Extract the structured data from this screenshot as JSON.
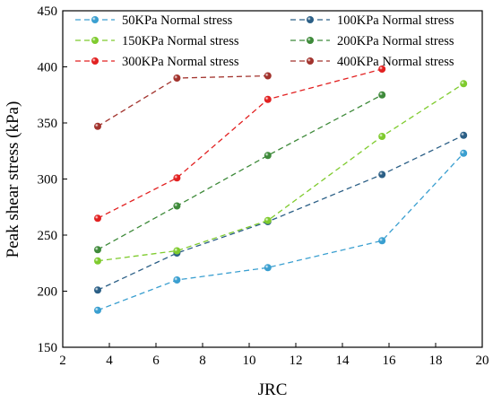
{
  "chart_data": {
    "type": "line",
    "xlabel": "JRC",
    "ylabel": "Peak shear stress (kPa)",
    "xlim": [
      2,
      20
    ],
    "ylim": [
      150,
      450
    ],
    "xticks": [
      2,
      4,
      6,
      8,
      10,
      12,
      14,
      16,
      18,
      20
    ],
    "yticks": [
      150,
      200,
      250,
      300,
      350,
      400,
      450
    ],
    "grid": false,
    "legend_placement": "top",
    "legend_columns": 2,
    "line_style": "dashed",
    "marker": "sphere",
    "series": [
      {
        "name": "50KPa Normal stress",
        "color": "#3a9fd0",
        "x": [
          3.5,
          6.9,
          10.8,
          15.7,
          19.2
        ],
        "y": [
          183,
          210,
          221,
          245,
          323
        ]
      },
      {
        "name": "100KPa Normal stress",
        "color": "#2b5f86",
        "x": [
          3.5,
          6.9,
          10.8,
          15.7,
          19.2
        ],
        "y": [
          201,
          234,
          262,
          304,
          339
        ]
      },
      {
        "name": "150KPa Normal stress",
        "color": "#7fcb2e",
        "x": [
          3.5,
          6.9,
          10.8,
          15.7,
          19.2
        ],
        "y": [
          227,
          236,
          263,
          338,
          385
        ]
      },
      {
        "name": "200KPa Normal stress",
        "color": "#3e8a3a",
        "x": [
          3.5,
          6.9,
          10.8,
          15.7
        ],
        "y": [
          237,
          276,
          321,
          375
        ]
      },
      {
        "name": "300KPa Normal stress",
        "color": "#e22121",
        "x": [
          3.5,
          6.9,
          10.8,
          15.7
        ],
        "y": [
          265,
          301,
          371,
          398
        ]
      },
      {
        "name": "400KPa Normal stress",
        "color": "#a2332d",
        "x": [
          3.5,
          6.9,
          10.8
        ],
        "y": [
          347,
          390,
          392
        ]
      }
    ]
  }
}
